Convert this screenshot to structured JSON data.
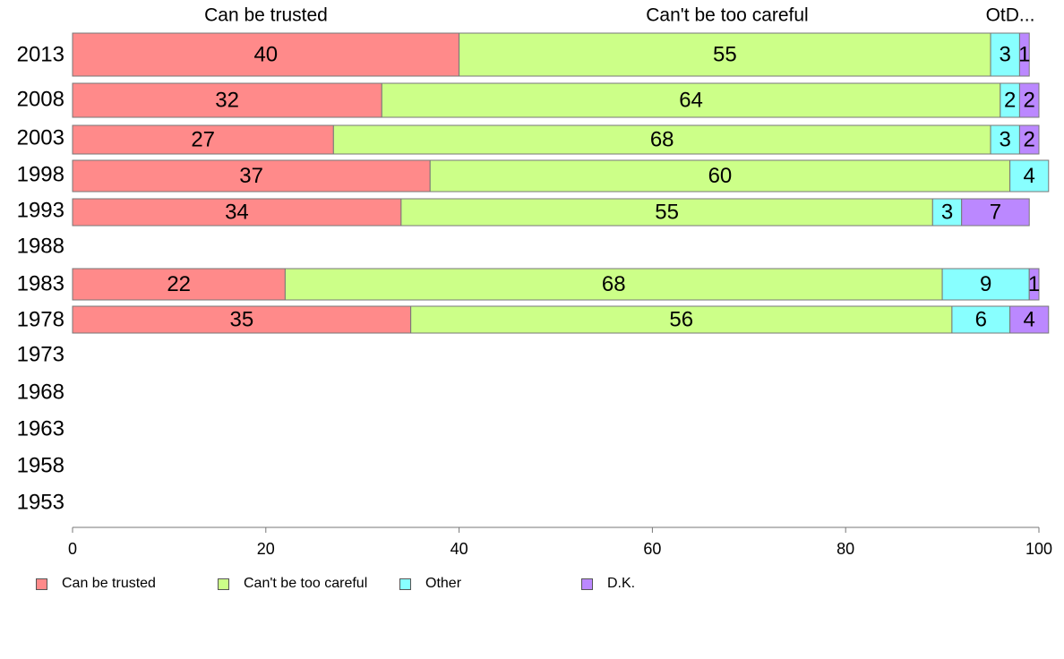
{
  "chart_data": {
    "type": "bar",
    "orientation": "horizontal",
    "stacked": true,
    "categories": [
      "2013",
      "2008",
      "2003",
      "1998",
      "1993",
      "1988",
      "1983",
      "1978",
      "1973",
      "1968",
      "1963",
      "1958",
      "1953"
    ],
    "series": [
      {
        "name": "Can be trusted",
        "color": "#ff8a8a",
        "values": [
          40,
          32,
          27,
          37,
          34,
          null,
          22,
          35,
          null,
          null,
          null,
          null,
          null
        ]
      },
      {
        "name": "Can't be too careful",
        "color": "#ccff88",
        "values": [
          55,
          64,
          68,
          60,
          55,
          null,
          68,
          56,
          null,
          null,
          null,
          null,
          null
        ]
      },
      {
        "name": "Other",
        "color": "#88ffff",
        "values": [
          3,
          2,
          3,
          4,
          3,
          null,
          9,
          6,
          null,
          null,
          null,
          null,
          null
        ]
      },
      {
        "name": "D.K.",
        "color": "#bb88ff",
        "values": [
          1,
          2,
          2,
          0,
          7,
          null,
          1,
          4,
          null,
          null,
          null,
          null,
          null
        ]
      }
    ],
    "top_labels": [
      "Can be trusted",
      "Can't be too careful",
      "OtD..."
    ],
    "xlim": [
      0,
      100
    ],
    "xticks": [
      0,
      20,
      40,
      60,
      80,
      100
    ],
    "grid": false,
    "legend_position": "bottom"
  }
}
